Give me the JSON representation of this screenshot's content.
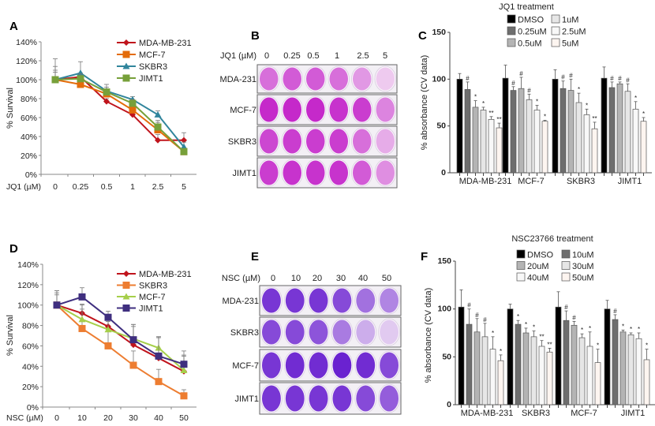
{
  "chart_data": [
    {
      "panel": "A",
      "type": "line",
      "xlabel": "JQ1 (µM)",
      "ylabel": "% Survival",
      "x": [
        "0",
        "0.25",
        "0.5",
        "1",
        "2.5",
        "5"
      ],
      "ylim": [
        0,
        140
      ],
      "yticks": [
        0,
        20,
        40,
        60,
        80,
        100,
        120,
        140
      ],
      "ytick_labels": [
        "0%",
        "20%",
        "40%",
        "60%",
        "80%",
        "100%",
        "120%",
        "140%"
      ],
      "grid": false,
      "legend": "top-right",
      "series": [
        {
          "name": "MDA-MB-231",
          "color": "#c0141c",
          "marker": "diamond",
          "values": [
            100,
            103,
            77,
            63,
            36,
            36
          ],
          "errors": [
            10,
            4,
            3,
            3,
            6,
            8
          ]
        },
        {
          "name": "MCF-7",
          "color": "#e46c0a",
          "marker": "square",
          "values": [
            100,
            95,
            85,
            68,
            47,
            24
          ],
          "errors": [
            14,
            3,
            4,
            5,
            10,
            3
          ]
        },
        {
          "name": "SKBR3",
          "color": "#31859c",
          "marker": "triangle",
          "values": [
            100,
            107,
            88,
            79,
            63,
            29
          ],
          "errors": [
            22,
            12,
            7,
            3,
            4,
            5
          ]
        },
        {
          "name": "JIMT1",
          "color": "#77a03a",
          "marker": "square",
          "values": [
            100,
            101,
            87,
            75,
            50,
            24
          ],
          "errors": [
            8,
            5,
            5,
            4,
            5,
            3
          ]
        }
      ]
    },
    {
      "panel": "C",
      "type": "bar",
      "title": "JQ1 treatment",
      "ylabel": "% absorbance (CV data)",
      "categories": [
        "MDA-MB-231",
        "MCF-7",
        "SKBR3",
        "JIMT1"
      ],
      "ylim": [
        0,
        150
      ],
      "yticks": [
        0,
        50,
        100,
        150
      ],
      "ytick_labels": [
        "0",
        "50",
        "100",
        "150"
      ],
      "legend": "top",
      "legend_order": [
        0,
        1,
        2,
        3,
        4,
        5
      ],
      "series": [
        {
          "name": "DMSO",
          "color": "#000000",
          "values": [
            100,
            101,
            100,
            101
          ],
          "errors": [
            6,
            14,
            10,
            12
          ],
          "sig": [
            "",
            "",
            "",
            ""
          ]
        },
        {
          "name": "0.25uM",
          "color": "#6e6e6e",
          "values": [
            89,
            88,
            90,
            91
          ],
          "errors": [
            8,
            4,
            8,
            6
          ],
          "sig": [
            "#",
            "#",
            "#",
            "#"
          ]
        },
        {
          "name": "0.5uM",
          "color": "#b4b4b4",
          "values": [
            70,
            90,
            88,
            95
          ],
          "errors": [
            7,
            12,
            12,
            2
          ],
          "sig": [
            "*",
            "#",
            "#",
            "#"
          ]
        },
        {
          "name": "1uM",
          "color": "#e6e6e6",
          "values": [
            67,
            78,
            75,
            87
          ],
          "errors": [
            3,
            6,
            10,
            8
          ],
          "sig": [
            "*",
            "#",
            "*",
            "#"
          ]
        },
        {
          "name": "2.5uM",
          "color": "#f8f8f8",
          "values": [
            57,
            67,
            62,
            68
          ],
          "errors": [
            3,
            5,
            6,
            8
          ],
          "sig": [
            "**",
            "*",
            "*",
            "*"
          ]
        },
        {
          "name": "5uM",
          "color": "#fdf5f0",
          "values": [
            48,
            55,
            47,
            55
          ],
          "errors": [
            5,
            1,
            7,
            4
          ],
          "sig": [
            "**",
            "*",
            "**",
            "*"
          ]
        }
      ]
    },
    {
      "panel": "D",
      "type": "line",
      "xlabel": "NSC (µM)",
      "ylabel": "% Survival",
      "x": [
        "0",
        "10",
        "20",
        "30",
        "40",
        "50"
      ],
      "ylim": [
        0,
        140
      ],
      "yticks": [
        0,
        20,
        40,
        60,
        80,
        100,
        120,
        140
      ],
      "ytick_labels": [
        "0%",
        "20%",
        "40%",
        "60%",
        "80%",
        "100%",
        "120%",
        "140%"
      ],
      "grid": false,
      "legend": "top-right",
      "series": [
        {
          "name": "MDA-MB-231",
          "color": "#c0141c",
          "marker": "diamond",
          "values": [
            100,
            92,
            79,
            61,
            48,
            35
          ],
          "errors": [
            12,
            8,
            6,
            18,
            20,
            16
          ]
        },
        {
          "name": "SKBR3",
          "color": "#ed7d31",
          "marker": "square",
          "values": [
            100,
            77,
            60,
            41,
            25,
            11
          ],
          "errors": [
            10,
            24,
            16,
            14,
            12,
            6
          ]
        },
        {
          "name": "MCF-7",
          "color": "#a6cf4a",
          "marker": "triangle",
          "values": [
            100,
            86,
            76,
            67,
            58,
            36
          ],
          "errors": [
            14,
            10,
            8,
            14,
            11,
            14
          ]
        },
        {
          "name": "JIMT1",
          "color": "#3f2f7f",
          "marker": "square",
          "values": [
            100,
            108,
            88,
            66,
            50,
            42
          ],
          "errors": [
            14,
            9,
            6,
            15,
            19,
            13
          ]
        }
      ]
    },
    {
      "panel": "F",
      "type": "bar",
      "title": "NSC23766 treatment",
      "ylabel": "% absorbance (CV data)",
      "categories": [
        "MDA-MB-231",
        "SKBR3",
        "MCF-7",
        "JIMT1"
      ],
      "ylim": [
        0,
        150
      ],
      "yticks": [
        0,
        50,
        100,
        150
      ],
      "ytick_labels": [
        "0",
        "50",
        "100",
        "150"
      ],
      "legend": "top",
      "legend_order": [
        0,
        2,
        4,
        1,
        3,
        5
      ],
      "series": [
        {
          "name": "DMSO",
          "color": "#000000",
          "values": [
            102,
            100,
            102,
            100
          ],
          "errors": [
            18,
            5,
            16,
            9
          ],
          "sig": [
            "",
            "",
            "",
            ""
          ]
        },
        {
          "name": "10uM",
          "color": "#6e6e6e",
          "values": [
            84,
            84,
            88,
            89
          ],
          "errors": [
            16,
            4,
            10,
            5
          ],
          "sig": [
            "#",
            "*",
            "#",
            "#"
          ]
        },
        {
          "name": "20uM",
          "color": "#b4b4b4",
          "values": [
            76,
            75,
            83,
            76
          ],
          "errors": [
            14,
            5,
            4,
            2
          ],
          "sig": [
            "#",
            "*",
            "#",
            "*"
          ]
        },
        {
          "name": "30uM",
          "color": "#e6e6e6",
          "values": [
            71,
            71,
            70,
            73
          ],
          "errors": [
            14,
            6,
            4,
            2
          ],
          "sig": [
            "#",
            "*",
            "*",
            "*"
          ]
        },
        {
          "name": "40uM",
          "color": "#f8f8f8",
          "values": [
            58,
            61,
            61,
            69
          ],
          "errors": [
            13,
            6,
            15,
            6
          ],
          "sig": [
            "*",
            "**",
            "*",
            "*"
          ]
        },
        {
          "name": "50uM",
          "color": "#fdf5f0",
          "values": [
            46,
            55,
            44,
            47
          ],
          "errors": [
            6,
            4,
            14,
            11
          ],
          "sig": [
            "*",
            "**",
            "*",
            "*"
          ]
        }
      ]
    }
  ],
  "plates": [
    {
      "panel": "B",
      "header_label": "JQ1 (µM)",
      "columns": [
        "0",
        "0.25",
        "0.5",
        "1",
        "2.5",
        "5"
      ],
      "stain_color": "#c21fc8",
      "rows": [
        {
          "label": "MDA-231",
          "stain": [
            0.6,
            0.7,
            0.7,
            0.6,
            0.4,
            0.15
          ]
        },
        {
          "label": "MCF-7",
          "stain": [
            0.95,
            0.95,
            0.95,
            0.9,
            0.85,
            0.5
          ]
        },
        {
          "label": "SKBR3",
          "stain": [
            0.8,
            0.85,
            0.85,
            0.85,
            0.6,
            0.3
          ]
        },
        {
          "label": "JIMT1",
          "stain": [
            0.85,
            0.9,
            0.9,
            0.9,
            0.7,
            0.45
          ]
        }
      ]
    },
    {
      "panel": "E",
      "header_label": "NSC (µM)",
      "columns": [
        "0",
        "10",
        "20",
        "30",
        "40",
        "50"
      ],
      "stain_color": "#6a22d0",
      "rows": [
        {
          "label": "MDA-231",
          "stain": [
            0.9,
            0.9,
            0.9,
            0.8,
            0.6,
            0.5
          ]
        },
        {
          "label": "SKBR3",
          "stain": [
            0.8,
            0.8,
            0.75,
            0.55,
            0.3,
            0.15
          ]
        },
        {
          "label": "MCF-7",
          "stain": [
            0.9,
            0.95,
            0.95,
            1.0,
            0.95,
            0.8
          ]
        },
        {
          "label": "JIMT1",
          "stain": [
            0.9,
            0.9,
            0.9,
            0.9,
            0.8,
            0.7
          ]
        }
      ]
    }
  ]
}
